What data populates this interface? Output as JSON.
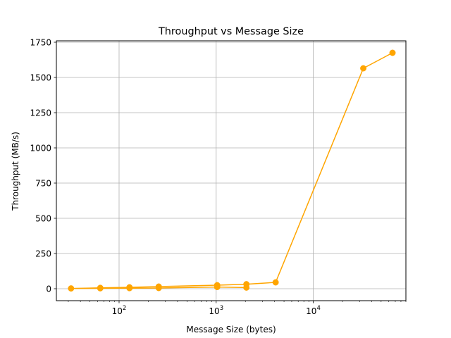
{
  "chart_data": {
    "type": "line",
    "title": "Throughput vs Message Size",
    "xlabel": "Message Size (bytes)",
    "ylabel": "Throughput (MB/s)",
    "x_scale": "log",
    "xlim": [
      22.6,
      90000
    ],
    "ylim": [
      -85,
      1760
    ],
    "grid": true,
    "color": "#ffa500",
    "marker": "circle",
    "x_ticks": [
      {
        "base": "10",
        "exp": "2",
        "value": 100
      },
      {
        "base": "10",
        "exp": "3",
        "value": 1000
      },
      {
        "base": "10",
        "exp": "4",
        "value": 10000
      }
    ],
    "y_ticks": [
      "0",
      "250",
      "500",
      "750",
      "1000",
      "1250",
      "1500",
      "1750"
    ],
    "series": [
      {
        "points": [
          {
            "x": 2048,
            "y": 8
          },
          {
            "x": 1024,
            "y": 12
          },
          {
            "x": 256,
            "y": 5
          },
          {
            "x": 128,
            "y": 4
          },
          {
            "x": 64,
            "y": 3
          },
          {
            "x": 32,
            "y": 2
          },
          {
            "x": 64,
            "y": 6
          },
          {
            "x": 128,
            "y": 10
          },
          {
            "x": 256,
            "y": 15
          },
          {
            "x": 1024,
            "y": 25
          },
          {
            "x": 2048,
            "y": 32
          },
          {
            "x": 4096,
            "y": 45
          },
          {
            "x": 32768,
            "y": 1565
          },
          {
            "x": 65536,
            "y": 1675
          }
        ]
      }
    ]
  }
}
